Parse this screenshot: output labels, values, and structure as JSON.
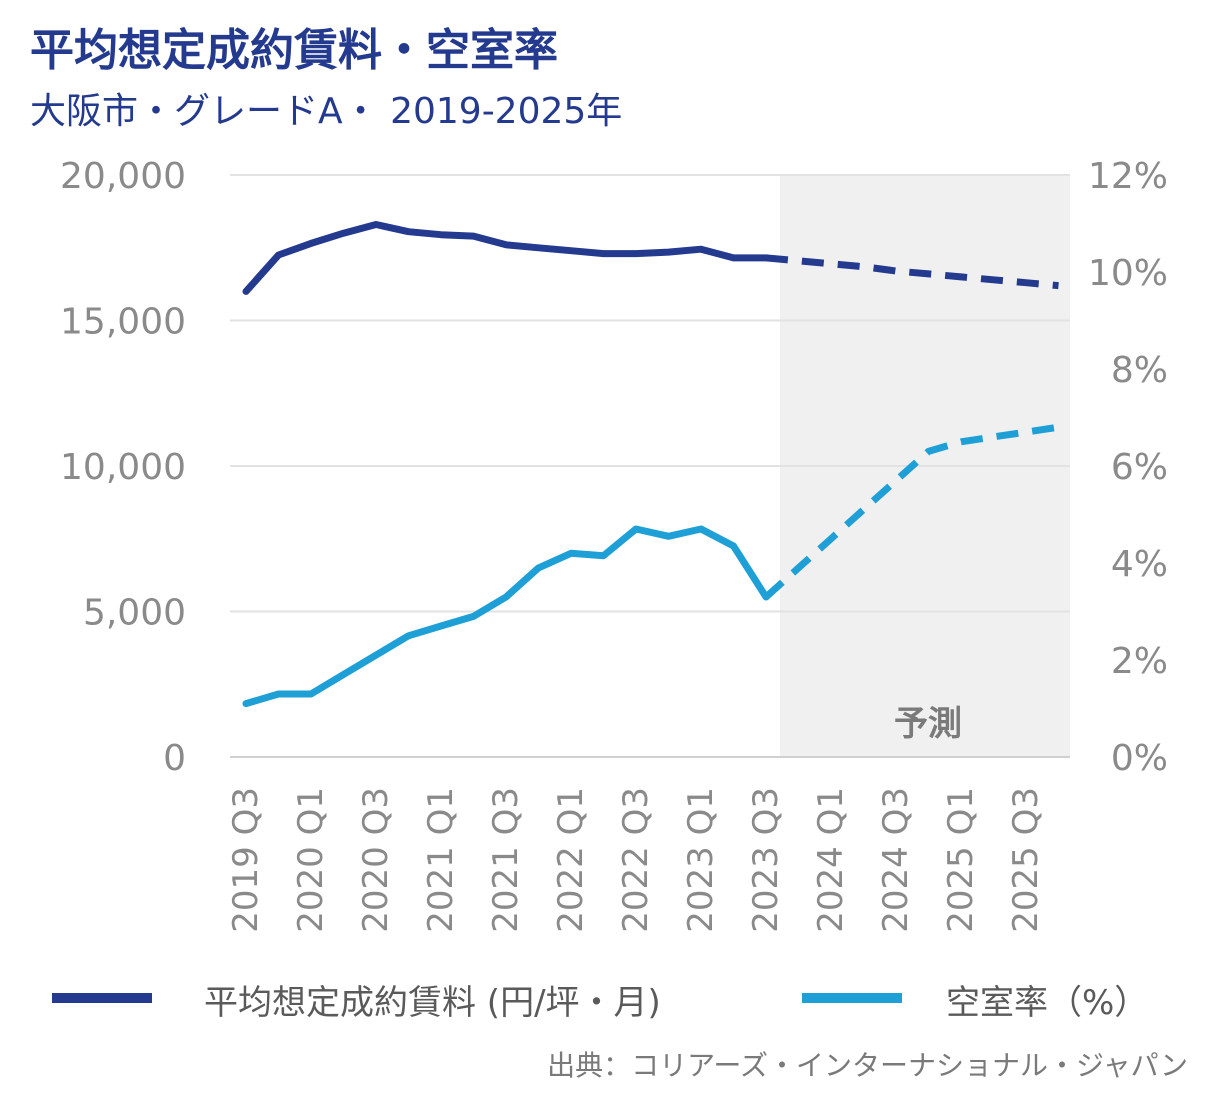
{
  "title": "平均想定成約賃料・空室率",
  "subtitle": "大阪市・グレードA・ 2019-2025年",
  "source": "出典：コリアーズ・インターナショナル・ジャパン",
  "chart_data": {
    "type": "line",
    "x": [
      "2019 Q3",
      "2019 Q4",
      "2020 Q1",
      "2020 Q2",
      "2020 Q3",
      "2020 Q4",
      "2021 Q1",
      "2021 Q2",
      "2021 Q3",
      "2021 Q4",
      "2022 Q1",
      "2022 Q2",
      "2022 Q3",
      "2022 Q4",
      "2023 Q1",
      "2023 Q2",
      "2023 Q3",
      "2023 Q4",
      "2024 Q1",
      "2024 Q2",
      "2024 Q3",
      "2024 Q4",
      "2025 Q1",
      "2025 Q2",
      "2025 Q3",
      "2025 Q4"
    ],
    "tick_labels": [
      "2019 Q3",
      "2020 Q1",
      "2020 Q3",
      "2021 Q1",
      "2021 Q3",
      "2022 Q1",
      "2022 Q3",
      "2023 Q1",
      "2023 Q3",
      "2024 Q1",
      "2024 Q3",
      "2025 Q1",
      "2025 Q3"
    ],
    "forecast_start": "2023 Q3",
    "forecast_label": "予測",
    "left_axis": {
      "ylim": [
        0,
        20000
      ],
      "ticks": [
        0,
        5000,
        10000,
        15000,
        20000
      ],
      "tick_labels": [
        "0",
        "5,000",
        "10,000",
        "15,000",
        "20,000"
      ]
    },
    "right_axis": {
      "ylim": [
        0,
        12
      ],
      "ticks": [
        0,
        2,
        4,
        6,
        8,
        10,
        12
      ],
      "tick_labels": [
        "0%",
        "2%",
        "4%",
        "6%",
        "8%",
        "10%",
        "12%"
      ]
    },
    "series": [
      {
        "name": "平均想定成約賃料 (円/坪・月)",
        "axis": "left",
        "color": "#233a8f",
        "values": [
          16000,
          17250,
          17650,
          18000,
          18300,
          18050,
          17950,
          17900,
          17600,
          17500,
          17400,
          17300,
          17300,
          17350,
          17450,
          17150,
          17150,
          null,
          null,
          null,
          null,
          null,
          null,
          null,
          null,
          null
        ],
        "forecast_values": [
          null,
          null,
          null,
          null,
          null,
          null,
          null,
          null,
          null,
          null,
          null,
          null,
          null,
          null,
          null,
          null,
          17150,
          17050,
          16950,
          16850,
          16700,
          16600,
          16500,
          16400,
          16300,
          16200
        ]
      },
      {
        "name": "空室率（%）",
        "axis": "right",
        "color": "#1ea0d6",
        "values": [
          1.1,
          1.3,
          1.3,
          1.7,
          2.1,
          2.5,
          2.7,
          2.9,
          3.3,
          3.9,
          4.2,
          4.15,
          4.7,
          4.55,
          4.7,
          4.35,
          3.3,
          null,
          null,
          null,
          null,
          null,
          null,
          null,
          null,
          null
        ],
        "forecast_values": [
          null,
          null,
          null,
          null,
          null,
          null,
          null,
          null,
          null,
          null,
          null,
          null,
          null,
          null,
          null,
          null,
          3.3,
          3.9,
          4.5,
          5.1,
          5.7,
          6.3,
          6.5,
          6.6,
          6.7,
          6.8
        ]
      }
    ]
  },
  "legend": {
    "rent_label": "平均想定成約賃料 (円/坪・月)",
    "vacancy_label": "空室率（%）"
  }
}
